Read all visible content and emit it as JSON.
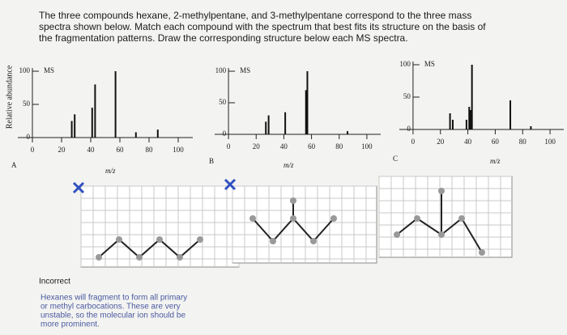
{
  "question": [
    "The three compounds hexane, 2-methylpentane, and 3-methylpentane correspond to the three mass",
    "spectra shown below. Match each compound with the spectrum that best fits its structure on the basis of",
    "the fragmentation patterns. Draw the corresponding structure below each MS spectra."
  ],
  "y_axis_label": "Relative abundance",
  "spectra": [
    {
      "letter": "A",
      "label": "MS",
      "x_label": "m/z",
      "xlim": [
        -10,
        110
      ],
      "ylim": [
        0,
        100
      ],
      "xticks": [
        0,
        20,
        40,
        60,
        80,
        100
      ],
      "yticks": [
        0,
        50,
        100
      ],
      "peaks": {
        "mz": [
          27,
          29,
          41,
          43,
          57,
          71,
          86
        ],
        "abundance": [
          25,
          35,
          45,
          80,
          100,
          8,
          12
        ]
      }
    },
    {
      "letter": "B",
      "label": "MS",
      "x_label": "m/z",
      "xlim": [
        -10,
        110
      ],
      "ylim": [
        0,
        100
      ],
      "xticks": [
        0,
        20,
        40,
        60,
        80,
        100
      ],
      "yticks": [
        0,
        50,
        100
      ],
      "peaks": {
        "mz": [
          27,
          29,
          41,
          56,
          57,
          86
        ],
        "abundance": [
          20,
          30,
          35,
          70,
          100,
          5
        ]
      }
    },
    {
      "letter": "C",
      "label": "MS",
      "x_label": "m/z",
      "xlim": [
        -10,
        110
      ],
      "ylim": [
        0,
        100
      ],
      "xticks": [
        0,
        20,
        40,
        60,
        80,
        100
      ],
      "yticks": [
        0,
        50,
        100
      ],
      "peaks": {
        "mz": [
          27,
          29,
          39,
          41,
          42,
          43,
          71,
          86
        ],
        "abundance": [
          25,
          15,
          15,
          35,
          30,
          100,
          45,
          5
        ]
      }
    }
  ],
  "feedback": {
    "status": "Incorrect",
    "lines": [
      "Hexanes will fragment to form all primary",
      "or methyl carbocations. These are very",
      "unstable, so the molecular ion should be",
      "more prominent."
    ]
  }
}
